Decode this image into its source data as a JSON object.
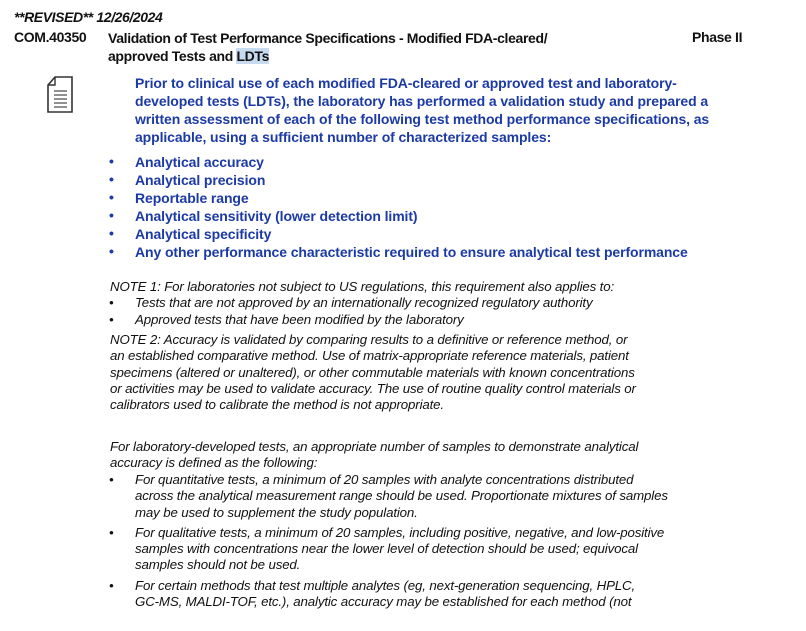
{
  "header": {
    "revised": "**REVISED** 12/26/2024",
    "code": "COM.40350",
    "title_line1": "Validation of Test Performance Specifications - Modified FDA-cleared/",
    "title_line2_prefix": "approved Tests and ",
    "title_line2_highlight": "LDTs",
    "phase": "Phase II"
  },
  "icon": "document-checklist-icon",
  "requirement": {
    "lines": [
      "Prior to clinical use of each modified FDA-cleared or approved test and laboratory-",
      "developed tests (LDTs), the laboratory has performed a validation study and prepared a",
      "written assessment of each of the following test method performance specifications, as",
      "applicable, using a sufficient number of characterized samples:"
    ],
    "bullets": [
      "Analytical accuracy",
      "Analytical precision",
      "Reportable range",
      "Analytical sensitivity (lower detection limit)",
      "Analytical specificity",
      "Any other performance characteristic required to ensure analytical test performance"
    ]
  },
  "note1": {
    "text": "NOTE 1: For laboratories not subject to US regulations, this requirement also applies to:",
    "bullets": [
      "Tests that are not approved by an internationally recognized regulatory authority",
      "Approved tests that have been modified by the laboratory"
    ]
  },
  "note2": {
    "lines": [
      "NOTE 2: Accuracy is validated by comparing results to a definitive or reference method, or",
      "an established comparative method. Use of matrix-appropriate reference materials, patient",
      "specimens (altered or unaltered), or other commutable materials with known concentrations",
      "or activities may be used to validate accuracy. The use of routine quality control materials or",
      "calibrators used to calibrate the method is not appropriate."
    ]
  },
  "ldt": {
    "lines": [
      "For laboratory-developed tests, an appropriate number of samples to demonstrate analytical",
      "accuracy is defined as the following:"
    ],
    "bullets": [
      [
        "For quantitative tests, a minimum of 20 samples with analyte concentrations distributed",
        "across the analytical measurement range should be used. Proportionate mixtures of samples",
        "may be used to supplement the study population."
      ],
      [
        "For qualitative tests, a minimum of 20 samples, including positive, negative, and low-positive",
        "samples with concentrations near the lower level of detection should be used; equivocal",
        "samples should not be used."
      ],
      [
        "For certain methods that test multiple analytes (eg, next-generation sequencing, HPLC,",
        "GC-MS, MALDI-TOF, etc.), analytic accuracy may be established for each method (not"
      ]
    ]
  }
}
